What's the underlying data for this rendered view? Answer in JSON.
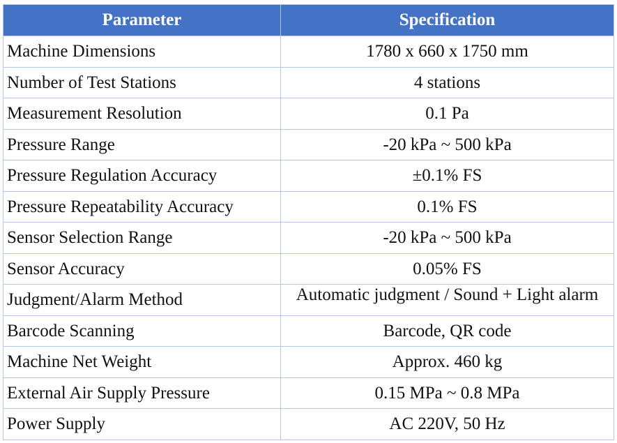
{
  "table": {
    "headers": {
      "parameter": "Parameter",
      "specification": "Specification"
    },
    "rows": [
      {
        "parameter": "Machine Dimensions",
        "specification": "1780 x 660 x 1750 mm"
      },
      {
        "parameter": "Number of Test Stations",
        "specification": "4 stations"
      },
      {
        "parameter": "Measurement Resolution",
        "specification": "0.1 Pa"
      },
      {
        "parameter": "Pressure Range",
        "specification": "-20 kPa ~ 500 kPa"
      },
      {
        "parameter": "Pressure Regulation Accuracy",
        "specification": "±0.1% FS"
      },
      {
        "parameter": "Pressure Repeatability Accuracy",
        "specification": "0.1% FS"
      },
      {
        "parameter": "Sensor Selection Range",
        "specification": "-20 kPa ~ 500 kPa"
      },
      {
        "parameter": "Sensor Accuracy",
        "specification": "0.05% FS"
      },
      {
        "parameter": "Judgment/Alarm Method",
        "specification": "Automatic judgment / Sound + Light alarm"
      },
      {
        "parameter": "Barcode Scanning",
        "specification": "Barcode, QR code"
      },
      {
        "parameter": "Machine Net Weight",
        "specification": "Approx. 460 kg"
      },
      {
        "parameter": "External Air Supply Pressure",
        "specification": "0.15 MPa ~ 0.8 MPa"
      },
      {
        "parameter": "Power Supply",
        "specification": "AC 220V, 50 Hz"
      }
    ]
  },
  "colors": {
    "header_background": "#4472c4",
    "header_text": "#ffffff",
    "grid_border": "#b4c6e7"
  }
}
